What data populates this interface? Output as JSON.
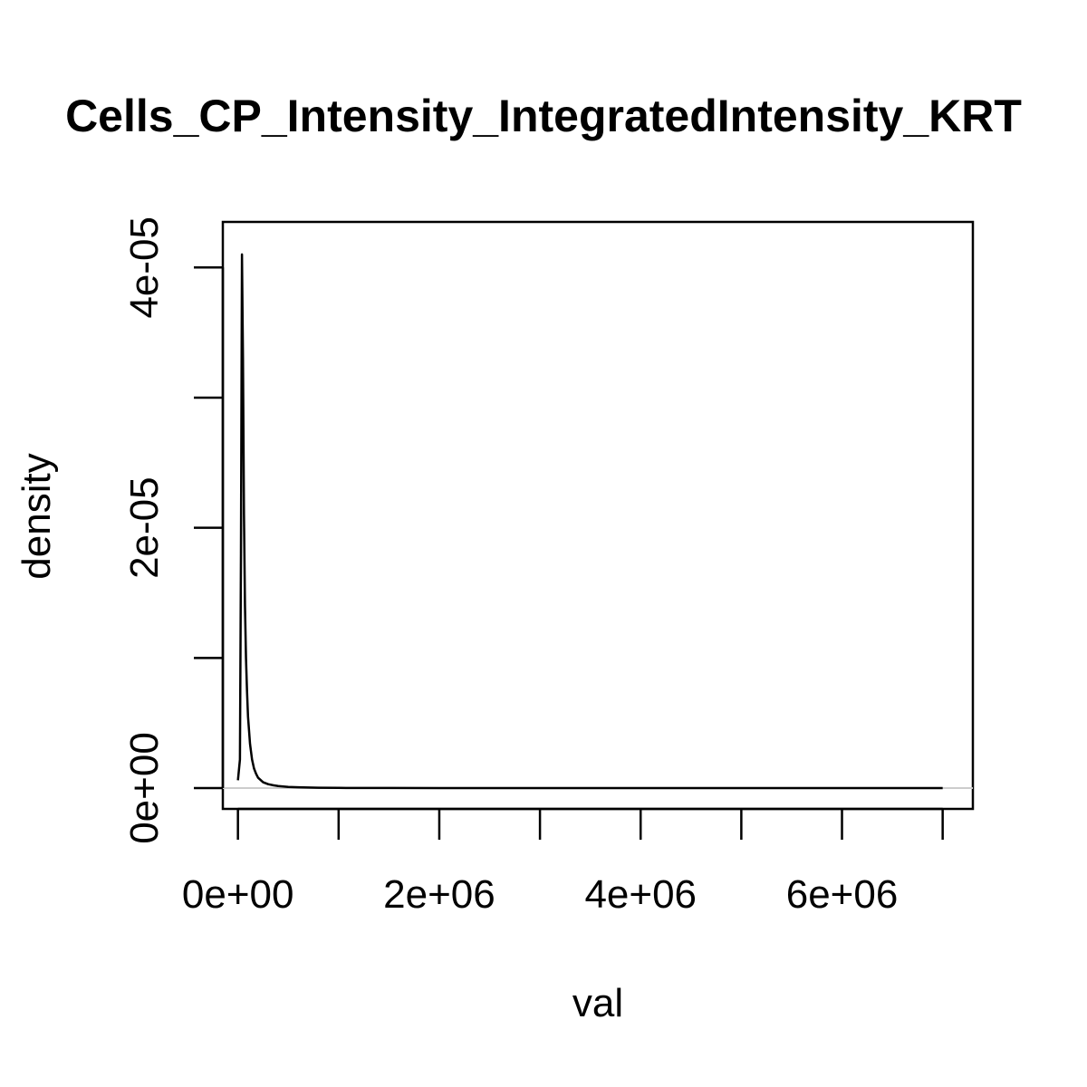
{
  "chart_data": {
    "type": "line",
    "title": "Cells_CP_Intensity_IntegratedIntensity_KRT",
    "xlabel": "val",
    "ylabel": "density",
    "xlim": [
      -150000,
      7300000
    ],
    "ylim": [
      -1.6e-06,
      4.35e-05
    ],
    "x_ticks": [
      0,
      1000000,
      2000000,
      3000000,
      4000000,
      5000000,
      6000000,
      7000000
    ],
    "x_tick_labels": [
      {
        "value": 0,
        "label": "0e+00"
      },
      {
        "value": 2000000,
        "label": "2e+06"
      },
      {
        "value": 4000000,
        "label": "4e+06"
      },
      {
        "value": 6000000,
        "label": "6e+06"
      }
    ],
    "y_ticks": [
      0,
      1e-05,
      2e-05,
      3e-05,
      4e-05
    ],
    "y_tick_labels": [
      {
        "value": 0,
        "label": "0e+00"
      },
      {
        "value": 2e-05,
        "label": "2e-05"
      },
      {
        "value": 4e-05,
        "label": "4e-05"
      }
    ],
    "baseline": 0,
    "grid": false,
    "legend": "none",
    "colors": {
      "line": "#000000",
      "baseline": "#cccccc",
      "frame": "#000000"
    },
    "series": [
      {
        "x": [
          0,
          20000,
          30000,
          40000,
          50000,
          60000,
          70000,
          80000,
          90000,
          100000,
          120000,
          140000,
          160000,
          180000,
          200000,
          250000,
          300000,
          350000,
          400000,
          500000,
          600000,
          800000,
          1000000,
          1500000,
          2000000,
          3000000,
          4000000,
          5000000,
          6000000,
          7000000
        ],
        "y": [
          6e-07,
          2.2e-06,
          1.8e-05,
          4.1e-05,
          3.3e-05,
          2.1e-05,
          1.4e-05,
          1e-05,
          7.5e-06,
          5.5e-06,
          3.4e-06,
          2.2e-06,
          1.5e-06,
          1.1e-06,
          8e-07,
          4.5e-07,
          3e-07,
          2.2e-07,
          1.6e-07,
          9e-08,
          6e-08,
          3e-08,
          1.5e-08,
          6e-09,
          3e-09,
          1e-09,
          5e-10,
          2e-10,
          1e-10,
          0
        ]
      }
    ]
  }
}
